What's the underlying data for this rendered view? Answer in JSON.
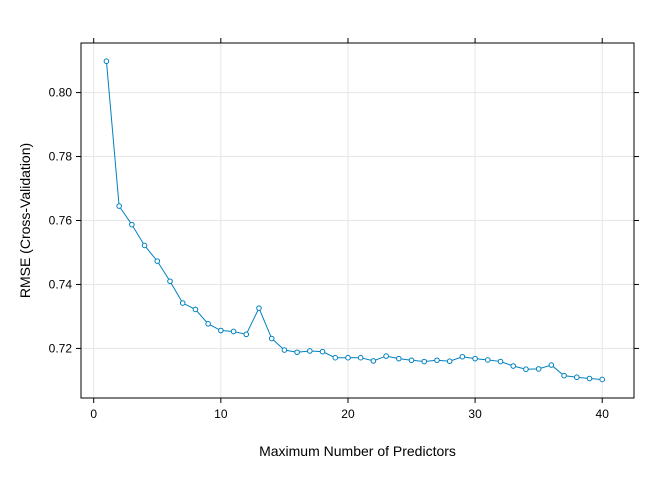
{
  "chart_data": {
    "type": "line",
    "title": "",
    "xlabel": "Maximum Number of Predictors",
    "ylabel": "RMSE (Cross-Validation)",
    "xlim": [
      -1,
      42.5
    ],
    "ylim": [
      0.7045,
      0.8155
    ],
    "xticks": [
      0,
      10,
      20,
      30,
      40
    ],
    "xtick_labels": [
      "0",
      "10",
      "20",
      "30",
      "40"
    ],
    "yticks": [
      0.72,
      0.74,
      0.76,
      0.78,
      0.8
    ],
    "ytick_labels": [
      "0.72",
      "0.74",
      "0.76",
      "0.78",
      "0.80"
    ],
    "grid": true,
    "legend": "none",
    "series": [
      {
        "color": "#0080C0",
        "x": [
          1,
          2,
          3,
          4,
          5,
          6,
          7,
          8,
          9,
          10,
          11,
          12,
          13,
          14,
          15,
          16,
          17,
          18,
          19,
          20,
          21,
          22,
          23,
          24,
          25,
          26,
          27,
          28,
          29,
          30,
          31,
          32,
          33,
          34,
          35,
          36,
          37,
          38,
          39,
          40
        ],
        "values": [
          0.8098,
          0.7645,
          0.7587,
          0.7522,
          0.7473,
          0.741,
          0.7342,
          0.7322,
          0.7277,
          0.7256,
          0.7253,
          0.7244,
          0.7326,
          0.7231,
          0.7195,
          0.7188,
          0.7192,
          0.719,
          0.7171,
          0.7171,
          0.7171,
          0.7161,
          0.7176,
          0.7168,
          0.7163,
          0.7159,
          0.7163,
          0.716,
          0.7174,
          0.7168,
          0.7164,
          0.7159,
          0.7145,
          0.7135,
          0.7136,
          0.7148,
          0.7115,
          0.711,
          0.7106,
          0.7103
        ]
      }
    ]
  }
}
